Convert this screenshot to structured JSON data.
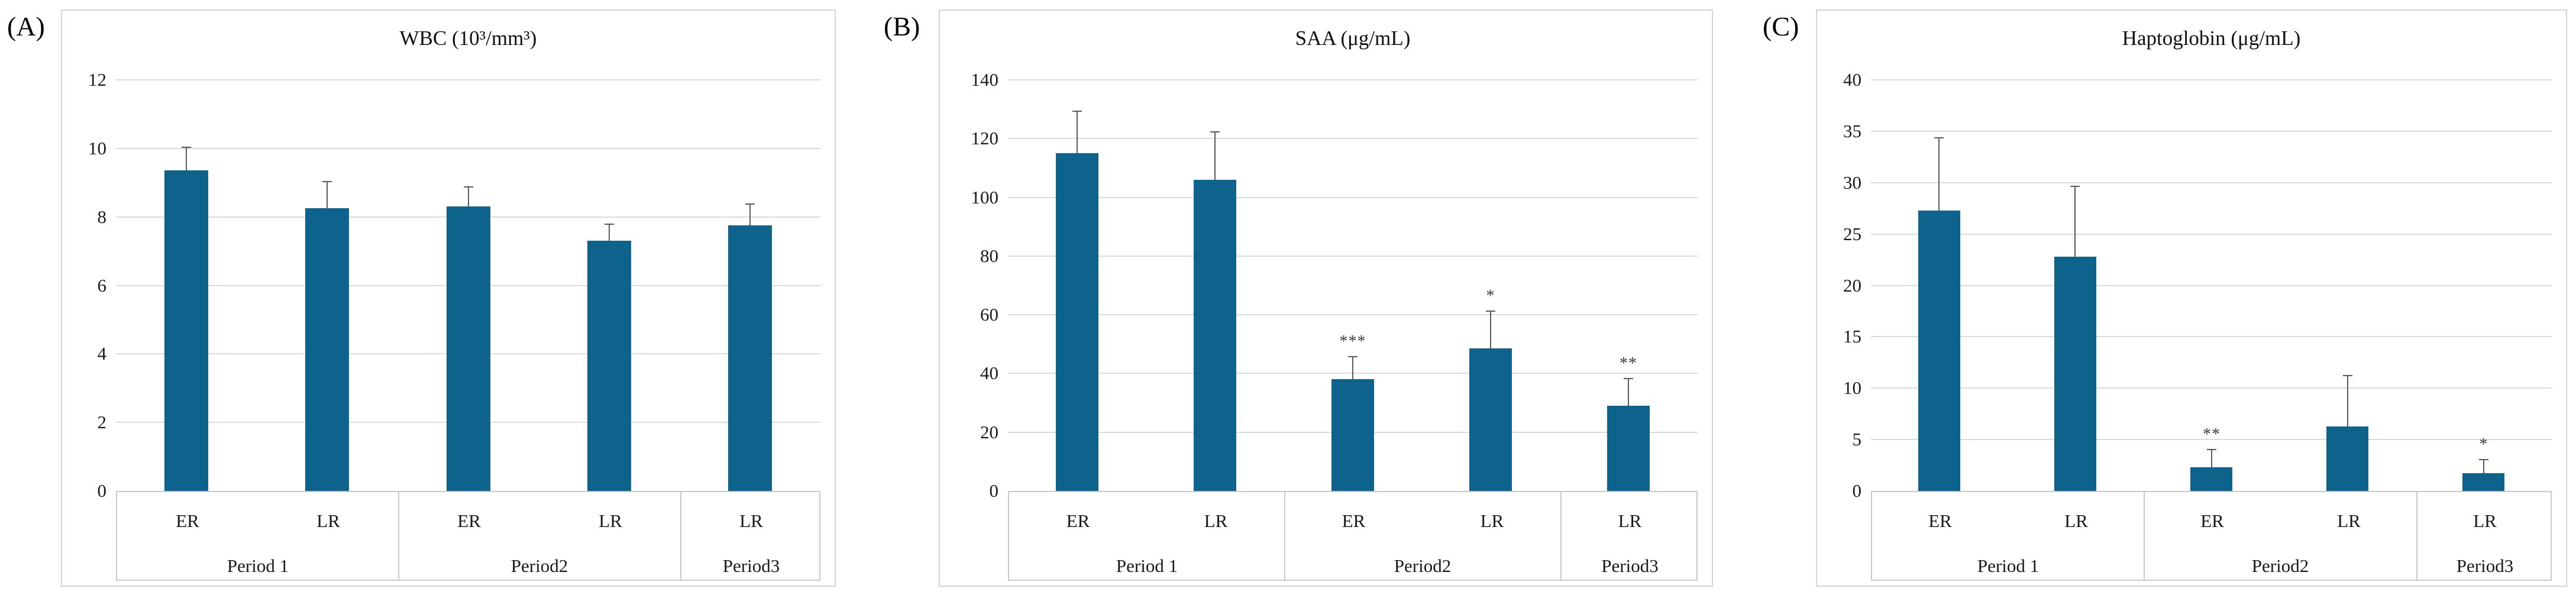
{
  "style": {
    "bar_color": "#0D638C",
    "grid_color": "#DBDBDB",
    "error_color": "#5A5A5A",
    "table_border_color": "#C9C9C9",
    "box_border_color": "#D5D5D5",
    "text_color": "#1A1A1A",
    "sig_color": "#3A3A3A"
  },
  "chart_data": [
    {
      "type": "bar",
      "panel_label": "(A)",
      "title": "WBC (10³/mm³)",
      "xlabel": "",
      "ylabel": "",
      "ylim": [
        0,
        12
      ],
      "ytick_step": 2,
      "grid": true,
      "legend": "none",
      "group_labels": [
        "Period 1",
        "Period2",
        "Period3"
      ],
      "group_sizes": [
        2,
        2,
        1
      ],
      "categories": [
        "ER",
        "LR",
        "ER",
        "LR",
        "LR"
      ],
      "values": [
        9.35,
        8.25,
        8.3,
        7.3,
        7.75
      ],
      "errors_plus": [
        0.7,
        0.8,
        0.6,
        0.5,
        0.65
      ],
      "sig": [
        "",
        "",
        "",
        "",
        ""
      ]
    },
    {
      "type": "bar",
      "panel_label": "(B)",
      "title": "SAA (μg/mL)",
      "xlabel": "",
      "ylabel": "",
      "ylim": [
        0,
        140
      ],
      "ytick_step": 20,
      "grid": true,
      "legend": "none",
      "group_labels": [
        "Period 1",
        "Period2",
        "Period3"
      ],
      "group_sizes": [
        2,
        2,
        1
      ],
      "categories": [
        "ER",
        "LR",
        "ER",
        "LR",
        "LR"
      ],
      "values": [
        115,
        106,
        38,
        48.5,
        29
      ],
      "errors_plus": [
        14.5,
        16.5,
        8,
        13,
        9.5
      ],
      "sig": [
        "",
        "",
        "***",
        "*",
        "**"
      ]
    },
    {
      "type": "bar",
      "panel_label": "(C)",
      "title": "Haptoglobin (μg/mL)",
      "xlabel": "",
      "ylabel": "",
      "ylim": [
        0,
        40
      ],
      "ytick_step": 5,
      "grid": true,
      "legend": "none",
      "group_labels": [
        "Period 1",
        "Period2",
        "Period3"
      ],
      "group_sizes": [
        2,
        2,
        1
      ],
      "categories": [
        "ER",
        "LR",
        "ER",
        "LR",
        "LR"
      ],
      "values": [
        27.3,
        22.8,
        2.3,
        6.3,
        1.7
      ],
      "errors_plus": [
        7.1,
        6.9,
        1.8,
        5.0,
        1.4
      ],
      "sig": [
        "",
        "",
        "**",
        "",
        "*"
      ]
    }
  ]
}
